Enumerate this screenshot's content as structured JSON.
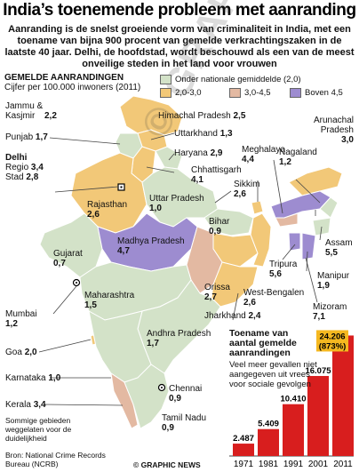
{
  "title": "India’s toenemende probleem met aanranding",
  "intro": "Aanranding is de snelst groeiende vorm van criminaliteit in India, met een toename van bijna 900 procent van gemelde verkrachtingszaken in de laatste 40 jaar. Delhi, de hoofdstad, wordt beschouwd als een van de meest onveilige steden in het land voor vrouwen",
  "map_section": {
    "heading": "GEMELDE AANRANDINGEN",
    "unit": "Cijfer per 100.000 inwoners (2011)"
  },
  "legend": [
    {
      "label": "Onder nationale gemiddelde (2,0)",
      "color": "#d3e2c8"
    },
    {
      "label": "2,0-3,0",
      "color": "#f2c878"
    },
    {
      "label": "3,0-4,5",
      "color": "#e3b9a2"
    },
    {
      "label": "Boven 4,5",
      "color": "#9d8cd0"
    }
  ],
  "regions": {
    "jk": {
      "name": "Jammu & Kasjmir",
      "value": "2,2"
    },
    "hp": {
      "name": "Himachal Pradesh",
      "value": "2,5"
    },
    "pj": {
      "name": "Punjab",
      "value": "1,7"
    },
    "uk": {
      "name": "Uttarkhand",
      "value": "1,3"
    },
    "hr": {
      "name": "Haryana",
      "value": "2,9"
    },
    "dl": {
      "name": "Delhi",
      "regio": "Regio",
      "regio_value": "3,4",
      "stad": "Stad",
      "stad_value": "2,8"
    },
    "rj": {
      "name": "Rajasthan",
      "value": "2,6"
    },
    "up": {
      "name": "Uttar Pradesh",
      "value": "1,0"
    },
    "gj": {
      "name": "Gujarat",
      "value": "0,7"
    },
    "mp": {
      "name": "Madhya Pradesh",
      "value": "4,7"
    },
    "mh": {
      "name": "Maharashtra",
      "value": "1,5"
    },
    "cg": {
      "name": "Chhattisgarh",
      "value": "4,1"
    },
    "br": {
      "name": "Bihar",
      "value": "0,9"
    },
    "sk": {
      "name": "Sikkim",
      "value": "2,6"
    },
    "jh": {
      "name": "Jharkhand",
      "value": "2,4"
    },
    "wb": {
      "name": "West-Bengalen",
      "value": "2,6"
    },
    "or": {
      "name": "Orissa",
      "value": "2,7"
    },
    "ap": {
      "name": "Andhra Pradesh",
      "value": "1,7"
    },
    "mu": {
      "name": "Mumbai",
      "value": "1,2"
    },
    "ga": {
      "name": "Goa",
      "value": "2,0"
    },
    "ka": {
      "name": "Karnataka",
      "value": "1,0"
    },
    "ke": {
      "name": "Kerala",
      "value": "3,4"
    },
    "ch": {
      "name": "Chennai",
      "value": "0,9"
    },
    "tn": {
      "name": "Tamil Nadu",
      "value": "0,9"
    },
    "ar": {
      "name": "Arunachal Pradesh",
      "value": "3,0"
    },
    "me": {
      "name": "Meghalaya",
      "value": "4,4"
    },
    "nl": {
      "name": "Nagaland",
      "value": "1,2"
    },
    "as": {
      "name": "Assam",
      "value": "5,5"
    },
    "mn": {
      "name": "Manipur",
      "value": "1,9"
    },
    "tr": {
      "name": "Tripura",
      "value": "5,6"
    },
    "mz": {
      "name": "Mizoram",
      "value": "7,1"
    }
  },
  "footnote": "Sommige gebieden weggelaten voor de duidelijkheid",
  "source": "Bron: National Crime Records Bureau (NCRB)",
  "credit": "© GRAPHIC NEWS",
  "watermark": "© GRAPHIC NEWS",
  "chart_data": {
    "type": "bar",
    "title": "Toename van aantal gemelde aanrandingen",
    "note": "Veel meer gevallen niet aangegeven uit vrees voor sociale gevolgen",
    "categories": [
      "1971",
      "1981",
      "1991",
      "2001",
      "2011"
    ],
    "values": [
      2487,
      5409,
      10410,
      16075,
      24206
    ],
    "value_labels": [
      "2.487",
      "5.409",
      "10.410",
      "16.075",
      "24.206"
    ],
    "highlight": "(873%)",
    "bar_color": "#d81e1e",
    "highlight_color": "#f5b820"
  }
}
